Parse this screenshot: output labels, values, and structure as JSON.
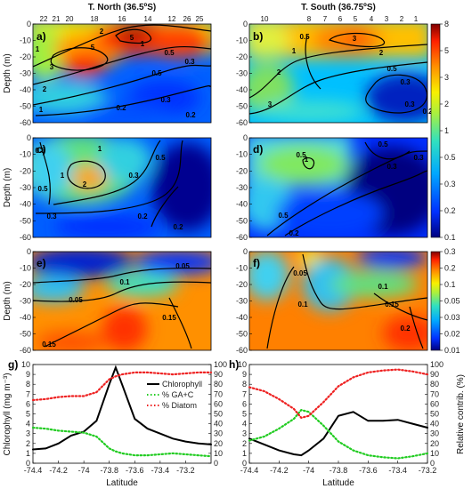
{
  "chart_data": [
    {
      "type": "heatmap",
      "panel": "a",
      "title": "T. North (36.5ºS)",
      "ylabel": "Depth (m)",
      "ylim": [
        -60,
        0
      ],
      "yticks": [
        "0",
        "-10",
        "-20",
        "-30",
        "-40",
        "-50",
        "-60"
      ],
      "stations": [
        "22",
        "21",
        "20",
        "18",
        "16",
        "14",
        "12",
        "26",
        "25"
      ],
      "contour_labels": [
        "1",
        "2",
        "3",
        "5",
        "5",
        "2",
        "1",
        "1",
        "0.5",
        "0.5",
        "0.3",
        "0.3",
        "0.2",
        "0.2"
      ]
    },
    {
      "type": "heatmap",
      "panel": "b",
      "title": "T. South (36.75ºS)",
      "ylim": [
        -60,
        0
      ],
      "yticks": [
        "0",
        "-10",
        "-20",
        "-30",
        "-40",
        "-50",
        "-60"
      ],
      "stations": [
        "10",
        "8",
        "7",
        "6",
        "5",
        "4",
        "3",
        "2",
        "1"
      ],
      "contour_labels": [
        "0.5",
        "1",
        "2",
        "3",
        "3",
        "2",
        "0.5",
        "0.3",
        "0.3",
        "0.2"
      ]
    },
    {
      "type": "heatmap",
      "panel": "c",
      "ylabel": "Depth (m)",
      "ylim": [
        -60,
        0
      ],
      "yticks": [
        "0",
        "-10",
        "-20",
        "-30",
        "-40",
        "-50",
        "-60"
      ],
      "contour_labels": [
        "0.5",
        "1",
        "2",
        "1",
        "0.5",
        "0.3",
        "0.2",
        "0.2",
        "0.3",
        "0.5"
      ]
    },
    {
      "type": "heatmap",
      "panel": "d",
      "ylim": [
        -60,
        0
      ],
      "yticks": [
        "0",
        "-10",
        "-20",
        "-30",
        "-40",
        "-50",
        "-60"
      ],
      "contour_labels": [
        "0.5",
        "1",
        "0.5",
        "0.3",
        "0.5",
        "0.3",
        "0.2"
      ]
    },
    {
      "type": "heatmap",
      "panel": "e",
      "ylabel": "Depth (m)",
      "ylim": [
        -60,
        0
      ],
      "yticks": [
        "0",
        "-10",
        "-20",
        "-30",
        "-40",
        "-50",
        "-60"
      ],
      "contour_labels": [
        "0.05",
        "0.05",
        "0.1",
        "0.15",
        "0.15"
      ]
    },
    {
      "type": "heatmap",
      "panel": "f",
      "ylim": [
        -60,
        0
      ],
      "yticks": [
        "0",
        "-10",
        "-20",
        "-30",
        "-40",
        "-50",
        "-60"
      ],
      "contour_labels": [
        "0.05",
        "0.1",
        "0.1",
        "0.15",
        "0.2"
      ]
    },
    {
      "type": "line",
      "panel": "g",
      "xlabel": "Latitude",
      "ylabel": "Chlorophyll (mg m⁻³)",
      "ylabel_right": "",
      "xlim": [
        -74.4,
        -73.0
      ],
      "ylim": [
        0,
        10
      ],
      "ylim_right": [
        0,
        100
      ],
      "xticks": [
        "-74.4",
        "-74.2",
        "-74",
        "-73.8",
        "-73.6",
        "-73.4",
        "-73.2"
      ],
      "yticks": [
        "0",
        "1",
        "2",
        "3",
        "4",
        "5",
        "6",
        "7",
        "8",
        "9",
        "10"
      ],
      "yticks_right": [
        "0",
        "10",
        "20",
        "30",
        "40",
        "50",
        "60",
        "70",
        "80",
        "90",
        "100"
      ],
      "legend": "top-right",
      "series": [
        {
          "name": "Chlorophyll",
          "axis": "left",
          "color": "#000000",
          "style": "solid",
          "x": [
            -74.4,
            -74.3,
            -74.2,
            -74.1,
            -74.0,
            -73.9,
            -73.8,
            -73.75,
            -73.7,
            -73.6,
            -73.5,
            -73.4,
            -73.3,
            -73.2,
            -73.1,
            -73.0
          ],
          "y": [
            1.4,
            1.5,
            2.0,
            2.8,
            3.2,
            4.3,
            8.0,
            9.7,
            8.0,
            4.5,
            3.5,
            3.0,
            2.5,
            2.2,
            2.0,
            1.9
          ]
        },
        {
          "name": "% GA+C",
          "axis": "right",
          "color": "#22cc22",
          "style": "dotted",
          "x": [
            -74.4,
            -74.3,
            -74.2,
            -74.1,
            -74.0,
            -73.9,
            -73.8,
            -73.75,
            -73.7,
            -73.6,
            -73.5,
            -73.4,
            -73.3,
            -73.2,
            -73.1,
            -73.0
          ],
          "y": [
            36,
            35,
            33,
            32,
            31,
            27,
            15,
            12,
            10,
            8,
            8,
            9,
            10,
            9,
            8,
            7
          ]
        },
        {
          "name": "% Diatom",
          "axis": "right",
          "color": "#ee2222",
          "style": "dotted",
          "x": [
            -74.4,
            -74.3,
            -74.2,
            -74.1,
            -74.0,
            -73.9,
            -73.8,
            -73.75,
            -73.7,
            -73.6,
            -73.5,
            -73.4,
            -73.3,
            -73.2,
            -73.1,
            -73.0
          ],
          "y": [
            64,
            65,
            67,
            68,
            68,
            72,
            85,
            88,
            90,
            92,
            92,
            91,
            90,
            91,
            92,
            92
          ]
        }
      ]
    },
    {
      "type": "line",
      "panel": "h",
      "xlabel": "Latitude",
      "ylabel_right": "Relative contrib. (%)",
      "xlim": [
        -74.4,
        -73.2
      ],
      "ylim": [
        0,
        10
      ],
      "ylim_right": [
        0,
        100
      ],
      "xticks": [
        "-74.4",
        "-74.2",
        "-74",
        "-73.8",
        "-73.6",
        "-73.4",
        "-73.2"
      ],
      "yticks": [
        "0",
        "1",
        "2",
        "3",
        "4",
        "5",
        "6",
        "7",
        "8",
        "9",
        "10"
      ],
      "yticks_right": [
        "0",
        "10",
        "20",
        "30",
        "40",
        "50",
        "60",
        "70",
        "80",
        "90",
        "100"
      ],
      "series": [
        {
          "name": "Chlorophyll",
          "axis": "left",
          "color": "#000000",
          "style": "solid",
          "x": [
            -74.4,
            -74.3,
            -74.2,
            -74.1,
            -74.05,
            -74.0,
            -73.9,
            -73.8,
            -73.7,
            -73.6,
            -73.5,
            -73.4,
            -73.3,
            -73.2
          ],
          "y": [
            2.5,
            1.9,
            1.3,
            0.9,
            0.8,
            1.3,
            2.5,
            4.8,
            5.2,
            4.3,
            4.3,
            4.4,
            4.0,
            3.6
          ]
        },
        {
          "name": "% GA+C",
          "axis": "right",
          "color": "#22cc22",
          "style": "dotted",
          "x": [
            -74.4,
            -74.3,
            -74.2,
            -74.1,
            -74.05,
            -74.0,
            -73.9,
            -73.8,
            -73.7,
            -73.6,
            -73.5,
            -73.4,
            -73.3,
            -73.2
          ],
          "y": [
            23,
            27,
            35,
            45,
            54,
            52,
            38,
            22,
            13,
            8,
            6,
            5,
            7,
            10
          ]
        },
        {
          "name": "% Diatom",
          "axis": "right",
          "color": "#ee2222",
          "style": "dotted",
          "x": [
            -74.4,
            -74.3,
            -74.2,
            -74.1,
            -74.05,
            -74.0,
            -73.9,
            -73.8,
            -73.7,
            -73.6,
            -73.5,
            -73.4,
            -73.3,
            -73.2
          ],
          "y": [
            77,
            73,
            65,
            55,
            46,
            48,
            62,
            78,
            87,
            92,
            94,
            95,
            93,
            90
          ]
        }
      ]
    }
  ],
  "colorbars": [
    {
      "ticks": [
        "8",
        "5",
        "3",
        "2",
        "1",
        "0.5",
        "0.3",
        "0.2",
        "0.1"
      ]
    },
    {
      "ticks": [
        "0.3",
        "0.2",
        "0.1",
        "0.05",
        "0.03",
        "0.02",
        "0.01"
      ]
    }
  ],
  "colors": {
    "dark_red": "#800000",
    "red": "#ff2000",
    "orange": "#ff9000",
    "yellow": "#f8f000",
    "green": "#40e060",
    "cyan": "#00c0ff",
    "blue": "#0040ff",
    "dark_blue": "#000080"
  }
}
